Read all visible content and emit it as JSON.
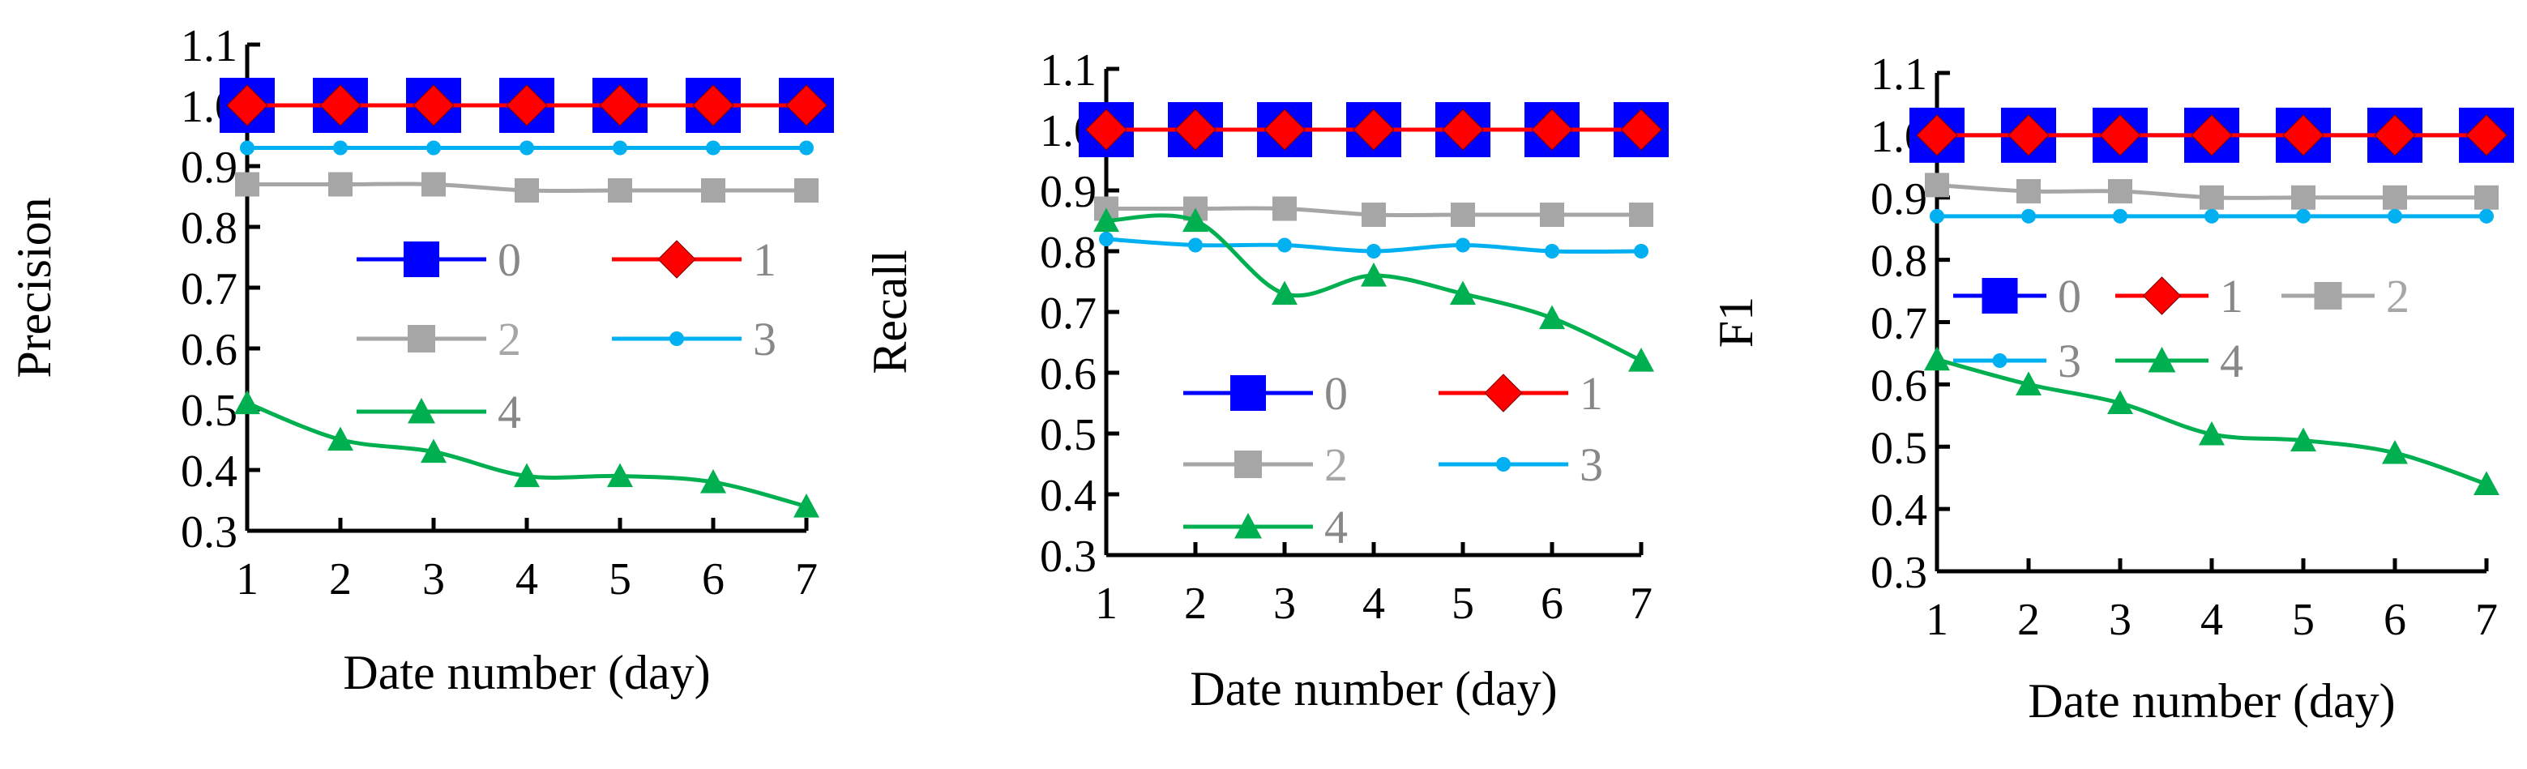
{
  "chart_data": [
    {
      "type": "line",
      "title": "",
      "xlabel": "Date number (day)",
      "ylabel": "Precision",
      "x": [
        1,
        2,
        3,
        4,
        5,
        6,
        7
      ],
      "xticks": [
        "1",
        "2",
        "3",
        "4",
        "5",
        "6",
        "7"
      ],
      "yticks": [
        "0.3",
        "0.4",
        "0.5",
        "0.6",
        "0.7",
        "0.8",
        "0.9",
        "1.0",
        "1.1"
      ],
      "ylim": [
        0.3,
        1.1
      ],
      "grid": false,
      "legend_position": "center",
      "legend_columns": 2,
      "series": [
        {
          "name": "0",
          "values": [
            1.0,
            1.0,
            1.0,
            1.0,
            1.0,
            1.0,
            1.0
          ]
        },
        {
          "name": "1",
          "values": [
            1.0,
            1.0,
            1.0,
            1.0,
            1.0,
            1.0,
            1.0
          ]
        },
        {
          "name": "2",
          "values": [
            0.87,
            0.87,
            0.87,
            0.86,
            0.86,
            0.86,
            0.86
          ]
        },
        {
          "name": "3",
          "values": [
            0.93,
            0.93,
            0.93,
            0.93,
            0.93,
            0.93,
            0.93
          ]
        },
        {
          "name": "4",
          "values": [
            0.51,
            0.45,
            0.43,
            0.39,
            0.39,
            0.38,
            0.34
          ]
        }
      ]
    },
    {
      "type": "line",
      "title": "",
      "xlabel": "Date number (day)",
      "ylabel": "Recall",
      "x": [
        1,
        2,
        3,
        4,
        5,
        6,
        7
      ],
      "xticks": [
        "1",
        "2",
        "3",
        "4",
        "5",
        "6",
        "7"
      ],
      "yticks": [
        "0.3",
        "0.4",
        "0.5",
        "0.6",
        "0.7",
        "0.8",
        "0.9",
        "1.0",
        "1.1"
      ],
      "ylim": [
        0.3,
        1.1
      ],
      "grid": false,
      "legend_position": "bottom",
      "legend_columns": 2,
      "series": [
        {
          "name": "0",
          "values": [
            1.0,
            1.0,
            1.0,
            1.0,
            1.0,
            1.0,
            1.0
          ]
        },
        {
          "name": "1",
          "values": [
            1.0,
            1.0,
            1.0,
            1.0,
            1.0,
            1.0,
            1.0
          ]
        },
        {
          "name": "2",
          "values": [
            0.87,
            0.87,
            0.87,
            0.86,
            0.86,
            0.86,
            0.86
          ]
        },
        {
          "name": "3",
          "values": [
            0.82,
            0.81,
            0.81,
            0.8,
            0.81,
            0.8,
            0.8
          ]
        },
        {
          "name": "4",
          "values": [
            0.85,
            0.85,
            0.73,
            0.76,
            0.73,
            0.69,
            0.62
          ]
        }
      ]
    },
    {
      "type": "line",
      "title": "",
      "xlabel": "Date number (day)",
      "ylabel": "F1",
      "x": [
        1,
        2,
        3,
        4,
        5,
        6,
        7
      ],
      "xticks": [
        "1",
        "2",
        "3",
        "4",
        "5",
        "6",
        "7"
      ],
      "yticks": [
        "0.3",
        "0.4",
        "0.5",
        "0.6",
        "0.7",
        "0.8",
        "0.9",
        "1.0",
        "1.1"
      ],
      "ylim": [
        0.3,
        1.1
      ],
      "grid": false,
      "legend_position": "center",
      "legend_columns": 3,
      "series": [
        {
          "name": "0",
          "values": [
            1.0,
            1.0,
            1.0,
            1.0,
            1.0,
            1.0,
            1.0
          ]
        },
        {
          "name": "1",
          "values": [
            1.0,
            1.0,
            1.0,
            1.0,
            1.0,
            1.0,
            1.0
          ]
        },
        {
          "name": "2",
          "values": [
            0.92,
            0.91,
            0.91,
            0.9,
            0.9,
            0.9,
            0.9
          ]
        },
        {
          "name": "3",
          "values": [
            0.87,
            0.87,
            0.87,
            0.87,
            0.87,
            0.87,
            0.87
          ]
        },
        {
          "name": "4",
          "values": [
            0.64,
            0.6,
            0.57,
            0.52,
            0.51,
            0.49,
            0.44
          ]
        }
      ]
    }
  ],
  "series_styles": [
    {
      "name": "0",
      "color": "#0000FF",
      "marker": "square-icon"
    },
    {
      "name": "1",
      "color": "#FF0000",
      "marker": "diamond-icon"
    },
    {
      "name": "2",
      "color": "#A6A6A6",
      "marker": "square-icon"
    },
    {
      "name": "3",
      "color": "#00B0F0",
      "marker": "circle-icon"
    },
    {
      "name": "4",
      "color": "#00B050",
      "marker": "triangle-icon"
    }
  ]
}
